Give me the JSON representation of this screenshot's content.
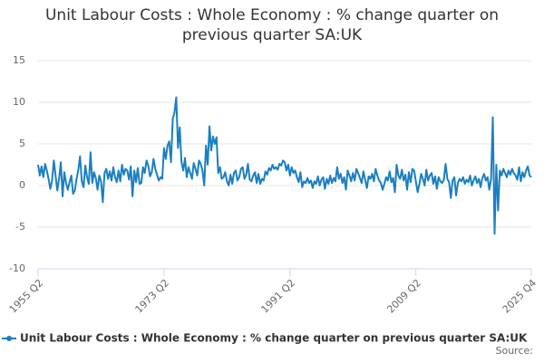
{
  "chart_data": {
    "type": "line",
    "title": "Unit Labour Costs : Whole Economy : % change quarter on previous quarter SA:UK",
    "source": "Source:",
    "categories": [
      "1955 Q2",
      null,
      null,
      null,
      null,
      null,
      null,
      null,
      null,
      null,
      null,
      null,
      null,
      null,
      null,
      null,
      null,
      null,
      null,
      null,
      null,
      null,
      null,
      null,
      null,
      null,
      null,
      null,
      null,
      null,
      null,
      null,
      null,
      null,
      null,
      null,
      null,
      null,
      null,
      null,
      null,
      null,
      null,
      null,
      null,
      null,
      null,
      null,
      null,
      null,
      null,
      null,
      null,
      null,
      null,
      null,
      null,
      null,
      null,
      null,
      null,
      null,
      null,
      null,
      null,
      null,
      null,
      null,
      null,
      null,
      null,
      null,
      "1973 Q2",
      null,
      null,
      null,
      null,
      null,
      null,
      null,
      null,
      null,
      null,
      null,
      null,
      null,
      null,
      null,
      null,
      null,
      null,
      null,
      null,
      null,
      null,
      null,
      null,
      null,
      null,
      null,
      null,
      null,
      null,
      null,
      null,
      null,
      null,
      null,
      null,
      null,
      null,
      null,
      null,
      null,
      null,
      null,
      null,
      null,
      null,
      null,
      null,
      null,
      null,
      null,
      null,
      null,
      null,
      null,
      null,
      null,
      null,
      null,
      null,
      null,
      null,
      null,
      null,
      null,
      null,
      null,
      null,
      null,
      null,
      null,
      "1991 Q2",
      null,
      null,
      null,
      null,
      null,
      null,
      null,
      null,
      null,
      null,
      null,
      null,
      null,
      null,
      null,
      null,
      null,
      null,
      null,
      null,
      null,
      null,
      null,
      null,
      null,
      null,
      null,
      null,
      null,
      null,
      null,
      null,
      null,
      null,
      null,
      null,
      null,
      null,
      null,
      null,
      null,
      null,
      null,
      null,
      null,
      null,
      null,
      null,
      null,
      null,
      null,
      null,
      null,
      null,
      null,
      null,
      null,
      null,
      null,
      null,
      null,
      null,
      null,
      null,
      null,
      null,
      null,
      null,
      null,
      null,
      null,
      "2009 Q2",
      null,
      null,
      null,
      null,
      null,
      null,
      null,
      null,
      null,
      null,
      null,
      null,
      null,
      null,
      null,
      null,
      null,
      null,
      null,
      null,
      null,
      null,
      null,
      null,
      null,
      null,
      null,
      null,
      null,
      null,
      null,
      null,
      null,
      null,
      null,
      null,
      null,
      null,
      null,
      null,
      null,
      null,
      null,
      null,
      null,
      null,
      null,
      null,
      null,
      null,
      null,
      null,
      null,
      null,
      null,
      null,
      null,
      null,
      null,
      null,
      null,
      null,
      null,
      null,
      null,
      "2025 Q4"
    ],
    "series": [
      {
        "name": "Unit Labour Costs : Whole Economy : % change quarter on previous quarter SA:UK",
        "color": "#1a7fc1",
        "values": [
          2.5,
          1.2,
          2.3,
          1.0,
          2.6,
          1.8,
          0.8,
          -0.4,
          0.6,
          3.0,
          1.2,
          -0.6,
          0.8,
          2.8,
          -1.3,
          1.6,
          0.3,
          -0.5,
          0.4,
          1.2,
          -1.0,
          -0.6,
          0.8,
          1.9,
          3.5,
          0.5,
          -0.2,
          2.4,
          1.0,
          0.2,
          4.0,
          0.3,
          1.6,
          0.9,
          -0.5,
          1.2,
          0.5,
          -2.0,
          1.5,
          2.0,
          0.8,
          1.7,
          0.6,
          2.2,
          1.0,
          0.4,
          1.8,
          0.5,
          2.5,
          1.3,
          2.0,
          1.8,
          0.7,
          2.3,
          -1.3,
          1.8,
          0.4,
          2.1,
          0.2,
          0.3,
          2.2,
          1.5,
          3.0,
          2.4,
          1.1,
          1.6,
          3.2,
          2.0,
          1.3,
          0.6,
          1.0,
          0.8,
          4.5,
          3.2,
          4.8,
          5.3,
          2.8,
          8.0,
          8.8,
          10.6,
          4.5,
          7.0,
          2.8,
          1.8,
          3.3,
          1.0,
          2.2,
          1.5,
          0.8,
          2.7,
          2.0,
          1.2,
          3.0,
          2.6,
          1.8,
          0.0,
          4.8,
          2.5,
          7.1,
          4.2,
          5.9,
          5.0,
          5.8,
          1.5,
          2.2,
          0.8,
          1.0,
          1.6,
          0.5,
          0.0,
          1.3,
          0.2,
          1.5,
          1.8,
          0.6,
          1.0,
          2.0,
          2.2,
          0.8,
          1.3,
          2.6,
          0.7,
          0.5,
          1.2,
          1.6,
          0.3,
          1.4,
          0.2,
          0.8,
          0.6,
          1.7,
          1.3,
          2.1,
          1.8,
          2.5,
          2.0,
          2.2,
          1.9,
          2.6,
          2.4,
          3.0,
          2.8,
          1.8,
          2.5,
          1.2,
          2.2,
          1.5,
          1.8,
          1.0,
          0.4,
          1.6,
          -0.2,
          0.5,
          0.3,
          0.9,
          0.3,
          0.6,
          -0.3,
          0.5,
          0.2,
          1.1,
          0.0,
          0.7,
          1.0,
          -0.4,
          0.8,
          0.2,
          1.2,
          0.3,
          0.9,
          0.5,
          2.2,
          0.8,
          1.4,
          0.3,
          1.0,
          -0.5,
          1.8,
          1.2,
          0.5,
          1.5,
          0.6,
          2.0,
          1.5,
          0.9,
          0.3,
          1.7,
          0.7,
          -0.3,
          1.1,
          0.8,
          1.4,
          0.5,
          2.0,
          1.2,
          0.6,
          0.3,
          -0.5,
          0.2,
          1.0,
          0.6,
          1.7,
          0.4,
          0.9,
          -0.8,
          2.5,
          1.2,
          0.8,
          1.9,
          0.6,
          1.3,
          -0.5,
          1.6,
          0.4,
          2.0,
          1.8,
          0.5,
          -0.8,
          0.2,
          1.4,
          0.8,
          0.0,
          1.9,
          0.6,
          1.2,
          1.5,
          0.2,
          1.1,
          -0.4,
          1.0,
          0.5,
          0.3,
          0.7,
          2.6,
          0.8,
          0.4,
          -1.5,
          0.6,
          1.0,
          -1.2,
          0.3,
          0.8,
          0.5,
          1.0,
          0.2,
          0.7,
          0.4,
          1.2,
          0.0,
          0.6,
          1.1,
          0.3,
          0.8,
          -0.2,
          0.9,
          1.4,
          0.6,
          1.0,
          -0.5,
          0.8,
          8.2,
          -5.8,
          2.5,
          -3.0,
          1.8,
          1.2,
          2.0,
          1.5,
          1.0,
          1.8,
          1.3,
          2.0,
          1.5,
          1.2,
          0.7,
          2.2,
          0.5,
          1.6,
          1.0,
          1.8,
          2.3,
          1.2,
          1.0
        ]
      }
    ],
    "ylim": [
      -10,
      15
    ],
    "yticks": [
      15,
      10,
      5,
      0,
      -5,
      -10
    ],
    "grid": true
  }
}
